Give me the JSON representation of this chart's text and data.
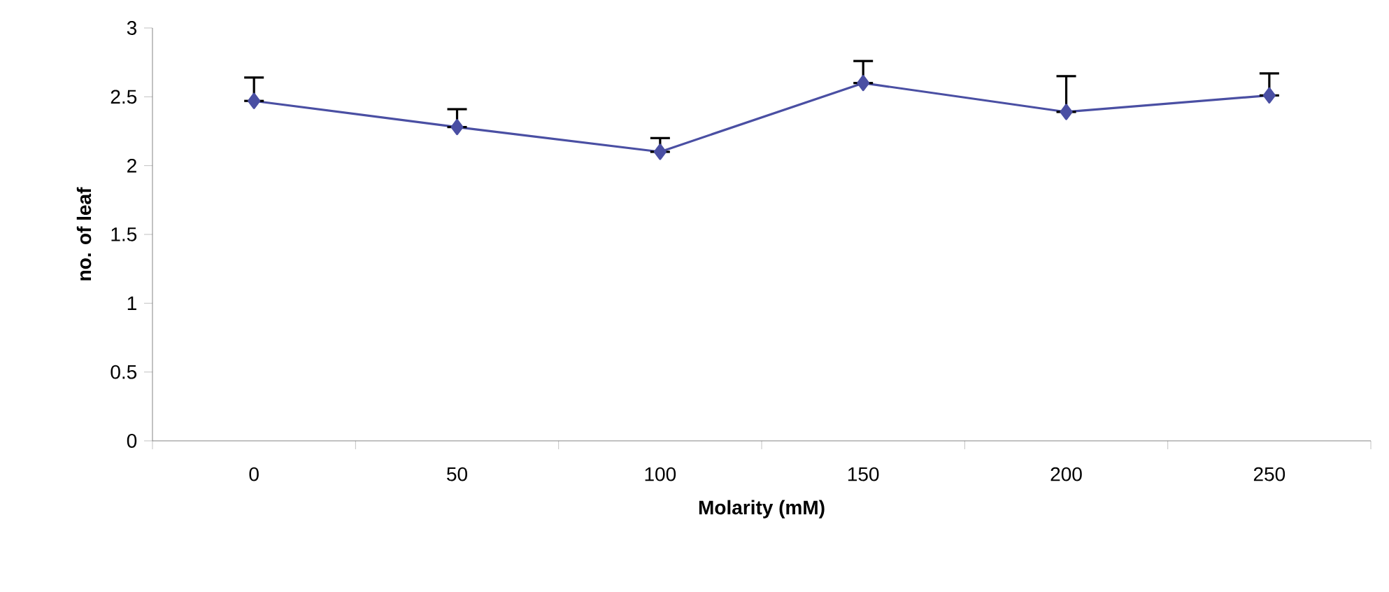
{
  "chart_data": {
    "type": "line",
    "xlabel": "Molarity (mM)",
    "ylabel": "no. of leaf",
    "categories": [
      "0",
      "50",
      "100",
      "150",
      "200",
      "250"
    ],
    "series": [
      {
        "color": "#4a4fa3",
        "values": [
          2.47,
          2.28,
          2.1,
          2.6,
          2.39,
          2.51
        ],
        "errors": [
          [
            2.47,
            2.64
          ],
          [
            2.28,
            2.41
          ],
          [
            2.1,
            2.2
          ],
          [
            2.6,
            2.76
          ],
          [
            2.39,
            2.65
          ],
          [
            2.51,
            2.67
          ]
        ]
      }
    ],
    "ylim": [
      0,
      3
    ],
    "yticks": [
      0,
      0.5,
      1,
      1.5,
      2,
      2.5,
      3
    ],
    "marker": "diamond",
    "line_style": "solid"
  }
}
